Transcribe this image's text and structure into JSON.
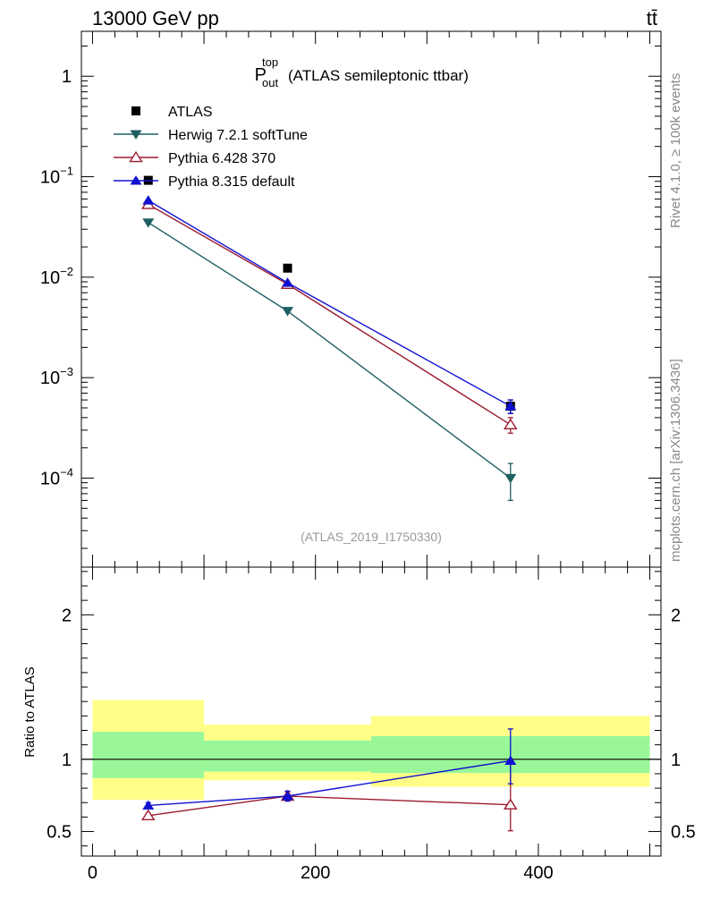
{
  "header": {
    "left_title": "13000 GeV pp",
    "right_title": "tt̄"
  },
  "side_labels": {
    "rivet": "Rivet 4.1.0, ≥ 100k events",
    "mcplots": "mcplots.cern.ch [arXiv:1306.3436]"
  },
  "chart_data": [
    {
      "type": "scatter",
      "panel": "main",
      "title_main": "P",
      "title_sup": "top",
      "title_sub": "out",
      "title_rest": "(ATLAS semileptonic ttbar)",
      "analysis_tag": "(ATLAS_2019_I1750330)",
      "yscale": "log",
      "ylim": [
        1.3e-05,
        2.8
      ],
      "xlim": [
        -10,
        510
      ],
      "ytick_labels": [
        {
          "value": 1,
          "base": "1",
          "exp": ""
        },
        {
          "value": 0.1,
          "base": "10",
          "exp": "−1"
        },
        {
          "value": 0.01,
          "base": "10",
          "exp": "−2"
        },
        {
          "value": 0.001,
          "base": "10",
          "exp": "−3"
        },
        {
          "value": 0.0001,
          "base": "10",
          "exp": "−4"
        }
      ],
      "legend_position": "top-left",
      "x": [
        50,
        175,
        375
      ],
      "series": [
        {
          "name": "ATLAS",
          "marker": "square",
          "color": "#000000",
          "values": [
            0.092,
            0.0123,
            0.00052
          ],
          "err": [
            0,
            0,
            8e-05
          ]
        },
        {
          "name": "Herwig 7.2.1 softTune",
          "marker": "triangle-down",
          "color": "#1f5f62",
          "values": [
            0.035,
            0.0046,
            0.0001
          ],
          "err": [
            0,
            0,
            4e-05
          ]
        },
        {
          "name": "Pythia 6.428 370",
          "marker": "triangle-open",
          "color": "#9b1b30",
          "values": [
            0.053,
            0.0085,
            0.00034
          ],
          "err": [
            0,
            0,
            6e-05
          ]
        },
        {
          "name": "Pythia 8.315 default",
          "marker": "triangle-up",
          "color": "#1010d0",
          "values": [
            0.058,
            0.0088,
            0.00052
          ],
          "err": [
            0,
            0,
            8e-05
          ]
        }
      ]
    },
    {
      "type": "scatter",
      "panel": "ratio",
      "ylabel": "Ratio to ATLAS",
      "ylim": [
        0.33,
        2.33
      ],
      "xlim": [
        -10,
        510
      ],
      "yticks": [
        0.5,
        1,
        2
      ],
      "ytick_labels": [
        "0.5",
        "1",
        "2"
      ],
      "xticks": [
        0,
        200,
        400
      ],
      "xtick_labels": [
        "0",
        "200",
        "400"
      ],
      "bands": [
        {
          "x0": 0,
          "x1": 100,
          "yellow": [
            0.72,
            1.41
          ],
          "green": [
            0.87,
            1.19
          ]
        },
        {
          "x0": 100,
          "x1": 250,
          "yellow": [
            0.855,
            1.24
          ],
          "green": [
            0.915,
            1.13
          ]
        },
        {
          "x0": 250,
          "x1": 500,
          "yellow": [
            0.81,
            1.3
          ],
          "green": [
            0.905,
            1.16
          ]
        }
      ],
      "x": [
        50,
        175,
        375
      ],
      "series": [
        {
          "name": "Pythia 6.428 370",
          "marker": "triangle-open",
          "color": "#9b1b30",
          "values": [
            0.61,
            0.745,
            0.685
          ],
          "err_lo": [
            0.015,
            0.03,
            0.18
          ],
          "err_hi": [
            0.015,
            0.03,
            0.31
          ]
        },
        {
          "name": "Pythia 8.315 default",
          "marker": "triangle-up",
          "color": "#1010d0",
          "values": [
            0.68,
            0.745,
            0.99
          ],
          "err_lo": [
            0.02,
            0.035,
            0.16
          ],
          "err_hi": [
            0.02,
            0.035,
            0.22
          ]
        }
      ]
    }
  ]
}
